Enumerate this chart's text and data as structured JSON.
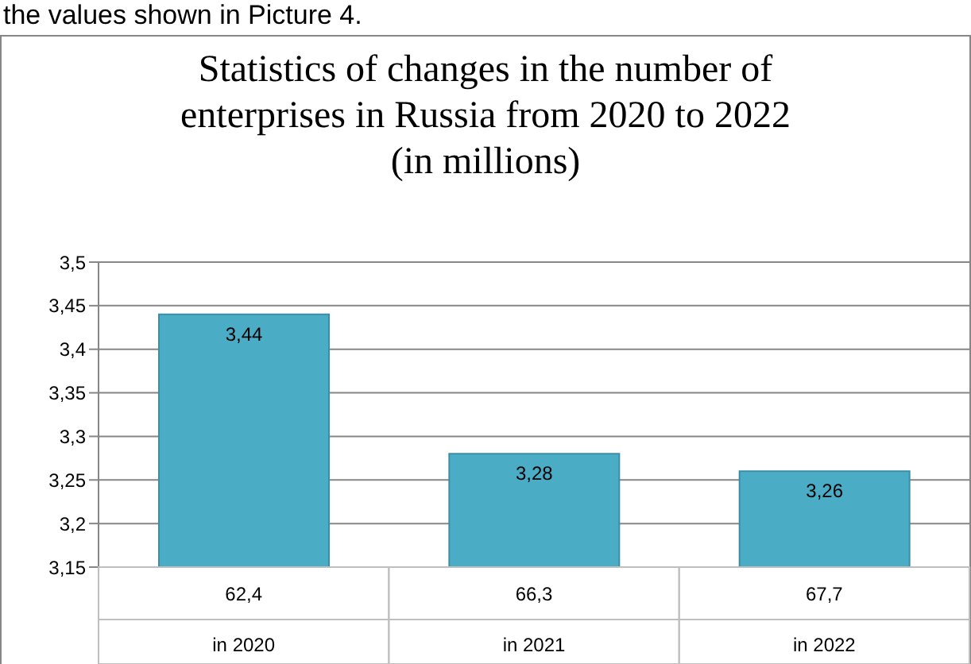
{
  "chart_data": {
    "type": "bar",
    "title": "Statistics of changes in the number of\nenterprises in Russia from 2020 to 2022\n(in millions)",
    "categories": [
      "in 2020",
      "in 2021",
      "in 2022"
    ],
    "values": [
      3.44,
      3.28,
      3.26
    ],
    "color": "#4bacc6",
    "value_labels": [
      "3,44",
      "3,28",
      "3,26"
    ],
    "ylim": [
      3.15,
      3.5
    ],
    "yticks": [
      {
        "value": 3.15,
        "label": "3,15"
      },
      {
        "value": 3.2,
        "label": "3,2"
      },
      {
        "value": 3.25,
        "label": "3,25"
      },
      {
        "value": 3.3,
        "label": "3,3"
      },
      {
        "value": 3.35,
        "label": "3,35"
      },
      {
        "value": 3.4,
        "label": "3,4"
      },
      {
        "value": 3.45,
        "label": "3,45"
      },
      {
        "value": 3.5,
        "label": "3,5"
      }
    ],
    "grid": "y",
    "legend": false,
    "annotations": [
      "the values shown in Picture 4.",
      "62,4",
      "66,3",
      "67,7"
    ]
  }
}
